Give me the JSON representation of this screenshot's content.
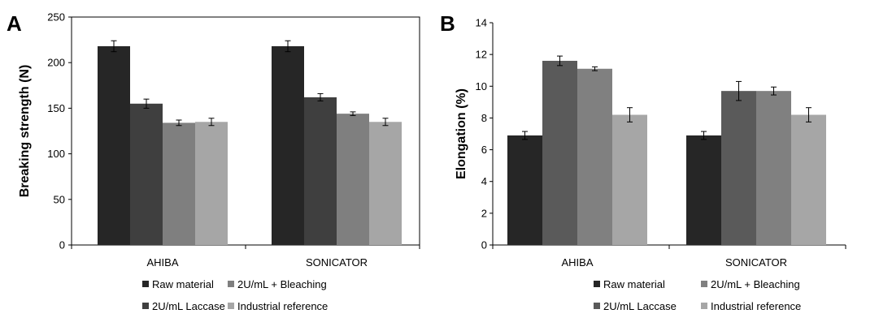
{
  "chart_data": [
    {
      "panel": "A",
      "type": "bar",
      "categories": [
        "AHIBA",
        "SONICATOR"
      ],
      "ylabel": "Breaking strength (N)",
      "xlabel": "",
      "ylim": [
        0,
        250
      ],
      "yticks": [
        0,
        50,
        100,
        150,
        200,
        250
      ],
      "grid": false,
      "legend_placement": "bottom",
      "series": [
        {
          "name": "Raw material",
          "color": "#262626",
          "values": [
            218,
            218
          ],
          "errors": [
            6,
            6
          ]
        },
        {
          "name": "2U/mL Laccase",
          "color": "#3f3f3f",
          "values": [
            155,
            162
          ],
          "errors": [
            5,
            4
          ]
        },
        {
          "name": "2U/mL + Bleaching",
          "color": "#7f7f7f",
          "values": [
            134,
            144
          ],
          "errors": [
            3,
            2
          ]
        },
        {
          "name": "Industrial reference",
          "color": "#a6a6a6",
          "values": [
            135,
            135
          ],
          "errors": [
            4,
            4
          ]
        }
      ]
    },
    {
      "panel": "B",
      "type": "bar",
      "categories": [
        "AHIBA",
        "SONICATOR"
      ],
      "ylabel": "Elongation (%)",
      "xlabel": "",
      "ylim": [
        0,
        14
      ],
      "yticks": [
        0,
        2,
        4,
        6,
        8,
        10,
        12,
        14
      ],
      "grid": false,
      "legend_placement": "bottom",
      "series": [
        {
          "name": "Raw material",
          "color": "#262626",
          "values": [
            6.9,
            6.9
          ],
          "errors": [
            0.25,
            0.25
          ]
        },
        {
          "name": "2U/mL Laccase",
          "color": "#5a5a5a",
          "values": [
            11.6,
            9.7
          ],
          "errors": [
            0.3,
            0.6
          ]
        },
        {
          "name": "2U/mL + Bleaching",
          "color": "#808080",
          "values": [
            11.1,
            9.7
          ],
          "errors": [
            0.12,
            0.25
          ]
        },
        {
          "name": "Industrial reference",
          "color": "#a6a6a6",
          "values": [
            8.2,
            8.2
          ],
          "errors": [
            0.45,
            0.45
          ]
        }
      ]
    }
  ]
}
